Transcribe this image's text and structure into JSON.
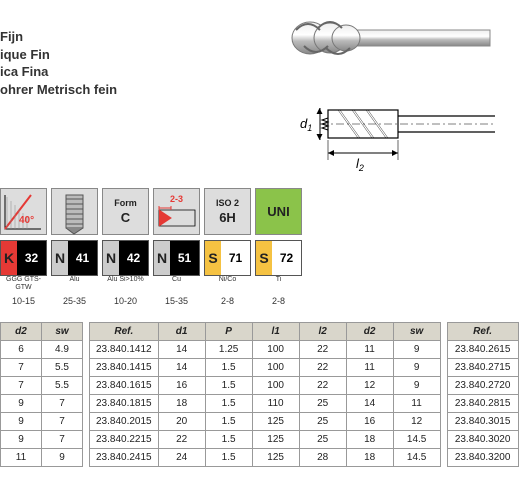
{
  "titles": [
    "Fijn",
    "ique Fin",
    "ica Fina",
    "ohrer Metrisch fein"
  ],
  "diagram": {
    "d1": "d",
    "d1sub": "1",
    "l2": "l",
    "l2sub": "2"
  },
  "props": [
    {
      "type": "helix",
      "angle": "40°",
      "bg": "#dddddd"
    },
    {
      "type": "thread",
      "bg": "#dddddd"
    },
    {
      "type": "text",
      "top": "Form",
      "main": "C",
      "bg": "#dddddd"
    },
    {
      "type": "chamfer",
      "label": "2-3",
      "bg": "#dddddd"
    },
    {
      "type": "text",
      "top": "ISO 2",
      "main": "6H",
      "bg": "#dddddd"
    },
    {
      "type": "text",
      "top": "",
      "main": "UNI",
      "bg": "#8bc34a"
    }
  ],
  "materials": [
    {
      "letter": "K",
      "num": "32",
      "letterBg": "#e53935",
      "numBg": "#000000",
      "sub": "GGG GTS-GTW",
      "range": "10-15"
    },
    {
      "letter": "N",
      "num": "41",
      "letterBg": "#cccccc",
      "numBg": "#000000",
      "sub": "Alu",
      "range": "25-35"
    },
    {
      "letter": "N",
      "num": "42",
      "letterBg": "#cccccc",
      "numBg": "#000000",
      "sub": "Alu Si>10%",
      "range": "10-20"
    },
    {
      "letter": "N",
      "num": "51",
      "letterBg": "#cccccc",
      "numBg": "#000000",
      "sub": "Cu",
      "range": "15-35"
    },
    {
      "letter": "S",
      "num": "71",
      "letterBg": "#f5c242",
      "numBg": "#ffffff",
      "numColor": "#000",
      "sub": "Ni/Co",
      "range": "2-8"
    },
    {
      "letter": "S",
      "num": "72",
      "letterBg": "#f5c242",
      "numBg": "#ffffff",
      "numColor": "#000",
      "sub": "Ti",
      "range": "2-8"
    }
  ],
  "table1": {
    "cols": [
      "d2",
      "sw"
    ],
    "rows": [
      [
        "6",
        "4.9"
      ],
      [
        "7",
        "5.5"
      ],
      [
        "7",
        "5.5"
      ],
      [
        "9",
        "7"
      ],
      [
        "9",
        "7"
      ],
      [
        "9",
        "7"
      ],
      [
        "11",
        "9"
      ]
    ]
  },
  "table2": {
    "cols": [
      "Ref.",
      "d1",
      "P",
      "l1",
      "l2",
      "d2",
      "sw"
    ],
    "rows": [
      [
        "23.840.1412",
        "14",
        "1.25",
        "100",
        "22",
        "11",
        "9"
      ],
      [
        "23.840.1415",
        "14",
        "1.5",
        "100",
        "22",
        "11",
        "9"
      ],
      [
        "23.840.1615",
        "16",
        "1.5",
        "100",
        "22",
        "12",
        "9"
      ],
      [
        "23.840.1815",
        "18",
        "1.5",
        "110",
        "25",
        "14",
        "11"
      ],
      [
        "23.840.2015",
        "20",
        "1.5",
        "125",
        "25",
        "16",
        "12"
      ],
      [
        "23.840.2215",
        "22",
        "1.5",
        "125",
        "25",
        "18",
        "14.5"
      ],
      [
        "23.840.2415",
        "24",
        "1.5",
        "125",
        "28",
        "18",
        "14.5"
      ]
    ]
  },
  "table3": {
    "cols": [
      "Ref."
    ],
    "rows": [
      [
        "23.840.2615"
      ],
      [
        "23.840.2715"
      ],
      [
        "23.840.2720"
      ],
      [
        "23.840.2815"
      ],
      [
        "23.840.3015"
      ],
      [
        "23.840.3020"
      ],
      [
        "23.840.3200"
      ]
    ]
  }
}
